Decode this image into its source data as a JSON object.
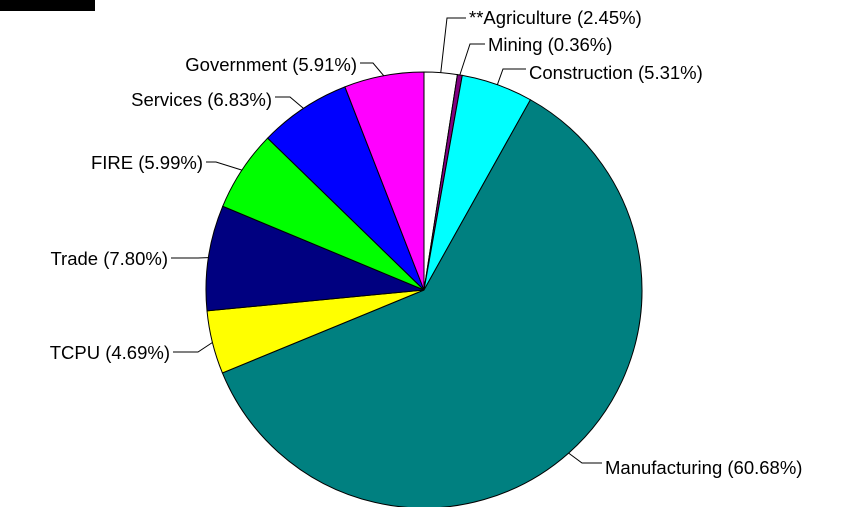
{
  "chart_data": {
    "type": "pie",
    "title": "",
    "slices": [
      {
        "label": "**Agriculture (2.45%)",
        "value": 2.45,
        "color": "#ffffff"
      },
      {
        "label": "Mining (0.36%)",
        "value": 0.36,
        "color": "#800080"
      },
      {
        "label": "Construction (5.31%)",
        "value": 5.31,
        "color": "#00ffff"
      },
      {
        "label": "Manufacturing (60.68%)",
        "value": 60.68,
        "color": "#008080"
      },
      {
        "label": "TCPU (4.69%)",
        "value": 4.69,
        "color": "#ffff00"
      },
      {
        "label": "Trade (7.80%)",
        "value": 7.8,
        "color": "#000080"
      },
      {
        "label": "FIRE (5.99%)",
        "value": 5.99,
        "color": "#00ff00"
      },
      {
        "label": "Services (6.83%)",
        "value": 6.83,
        "color": "#0000ff"
      },
      {
        "label": "Government (5.91%)",
        "value": 5.91,
        "color": "#ff00ff"
      }
    ],
    "start_angle": "12 o'clock",
    "direction": "clockwise"
  }
}
